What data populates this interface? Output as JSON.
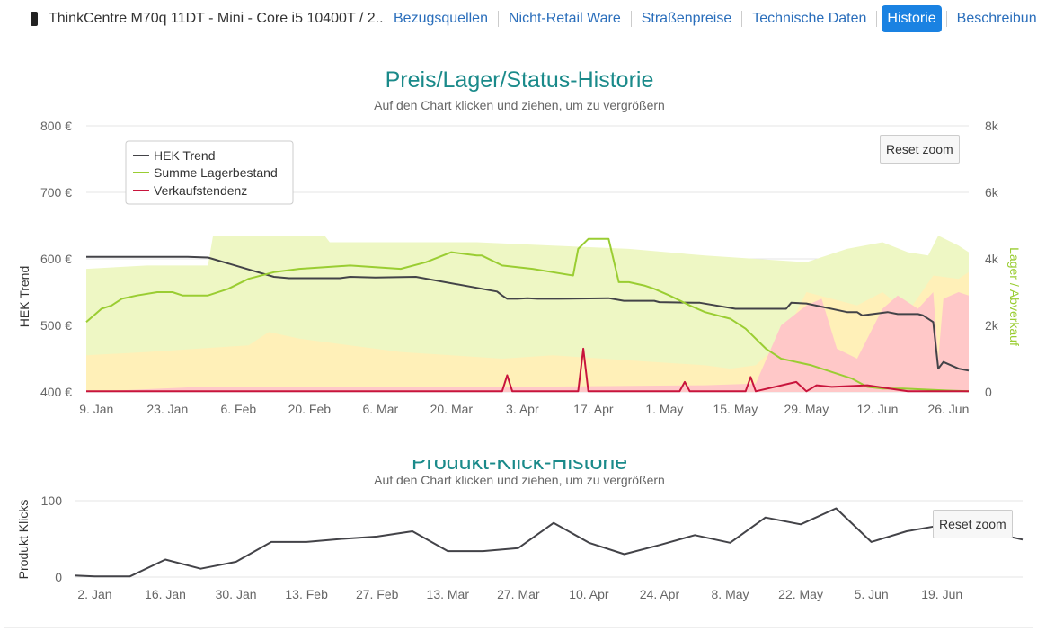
{
  "nav": {
    "product_title": "ThinkCentre M70q 11DT - Mini - Core i5 10400T / 2...",
    "tabs": [
      {
        "label": "Bezugsquellen",
        "active": false
      },
      {
        "label": "Nicht-Retail Ware",
        "active": false
      },
      {
        "label": "Straßenpreise",
        "active": false
      },
      {
        "label": "Technische Daten",
        "active": false
      },
      {
        "label": "Historie",
        "active": true
      },
      {
        "label": "Beschreibung",
        "active": false
      }
    ]
  },
  "reset_zoom_label": "Reset zoom",
  "chart_data": [
    {
      "type": "line",
      "title": "Preis/Lager/Status-Historie",
      "subtitle": "Auf den Chart klicken und ziehen, um zu vergrößern",
      "ylabel": "HEK Trend",
      "y2label": "Lager / Abverkauf",
      "ylim": [
        400,
        800
      ],
      "y2lim": [
        0,
        8000
      ],
      "yticks": [
        "800 €",
        "700 €",
        "600 €",
        "500 €",
        "400 €"
      ],
      "y2ticks": [
        "8k",
        "6k",
        "4k",
        "2k",
        "0"
      ],
      "xticks": [
        "9. Jan",
        "23. Jan",
        "6. Feb",
        "20. Feb",
        "6. Mar",
        "20. Mar",
        "3. Apr",
        "17. Apr",
        "1. May",
        "15. May",
        "29. May",
        "12. Jun",
        "26. Jun"
      ],
      "xlim": [
        -2,
        172
      ],
      "legend": [
        "HEK Trend",
        "Summe Lagerbestand",
        "Verkaufstendenz"
      ],
      "legend_position": "top-left",
      "colors": {
        "hek": "#434348",
        "lager": "#9acd32",
        "verkauf": "#c8143c",
        "band_green": "#eef7c4",
        "band_yellow": "#fff0b8",
        "band_red": "#ffc8c8"
      },
      "series": [
        {
          "name": "HEK Trend",
          "axis": "left",
          "x": [
            -2,
            18,
            22,
            35,
            38,
            48,
            50,
            55,
            63,
            79,
            80,
            81,
            83,
            85,
            87,
            91,
            101,
            104,
            110,
            111,
            118,
            119,
            126,
            136,
            137,
            140,
            148,
            150,
            151,
            156,
            158,
            162,
            163,
            165,
            166,
            167,
            170,
            172
          ],
          "y": [
            603,
            603,
            602,
            573,
            571,
            571,
            573,
            572,
            573,
            551,
            545,
            540,
            540,
            541,
            540,
            540,
            541,
            537,
            537,
            535,
            534,
            534,
            525,
            525,
            534,
            533,
            520,
            520,
            515,
            520,
            517,
            517,
            515,
            505,
            435,
            445,
            435,
            432
          ]
        },
        {
          "name": "Summe Lagerbestand",
          "axis": "right",
          "x": [
            -2,
            1,
            3,
            5,
            8,
            12,
            15,
            17,
            22,
            26,
            30,
            35,
            40,
            50,
            60,
            65,
            70,
            75,
            76,
            80,
            86,
            90,
            94,
            95,
            97,
            101,
            103,
            105,
            108,
            110,
            113,
            117,
            120,
            125,
            128,
            132,
            135,
            138,
            141,
            145,
            149,
            152,
            155,
            159,
            162,
            165,
            168,
            172
          ],
          "y": [
            2100,
            2500,
            2600,
            2800,
            2900,
            3000,
            3000,
            2900,
            2900,
            3100,
            3400,
            3600,
            3700,
            3800,
            3700,
            3900,
            4200,
            4100,
            4100,
            3800,
            3700,
            3600,
            3500,
            4300,
            4600,
            4600,
            3300,
            3300,
            3200,
            3100,
            2900,
            2600,
            2400,
            2200,
            1900,
            1300,
            1000,
            900,
            800,
            600,
            400,
            150,
            100,
            100,
            80,
            60,
            40,
            20
          ]
        },
        {
          "name": "Verkaufstendenz",
          "axis": "right",
          "x": [
            -2,
            40,
            80,
            81,
            82,
            90,
            95,
            96,
            97,
            100,
            110,
            115,
            116,
            117,
            120,
            128,
            129,
            130,
            138,
            140,
            142,
            145,
            152,
            160,
            172
          ],
          "y": [
            20,
            20,
            20,
            500,
            20,
            20,
            20,
            1300,
            20,
            20,
            20,
            20,
            300,
            20,
            20,
            20,
            450,
            20,
            300,
            20,
            200,
            150,
            200,
            20,
            20
          ]
        }
      ]
    },
    {
      "type": "line",
      "title": "Produkt-Klick-Historie",
      "subtitle": "Auf den Chart klicken und ziehen, um zu vergrößern",
      "ylabel": "Produkt Klicks",
      "ylim": [
        0,
        100
      ],
      "yticks": [
        "100",
        "0"
      ],
      "xticks": [
        "2. Jan",
        "16. Jan",
        "30. Jan",
        "13. Feb",
        "27. Feb",
        "13. Mar",
        "27. Mar",
        "10. Apr",
        "24. Apr",
        "8. May",
        "22. May",
        "5. Jun",
        "19. Jun"
      ],
      "xlim": [
        -4,
        184
      ],
      "series": [
        {
          "name": "Produkt Klicks",
          "x": [
            -4,
            0,
            7,
            14,
            21,
            28,
            35,
            42,
            49,
            56,
            63,
            70,
            77,
            84,
            91,
            98,
            105,
            112,
            119,
            126,
            133,
            140,
            147,
            154,
            161,
            168,
            175,
            182,
            184
          ],
          "y": [
            2,
            1,
            1,
            23,
            11,
            20,
            46,
            46,
            50,
            53,
            60,
            34,
            34,
            38,
            71,
            45,
            30,
            42,
            55,
            45,
            78,
            69,
            90,
            46,
            60,
            68,
            65,
            52,
            49
          ]
        }
      ]
    }
  ]
}
